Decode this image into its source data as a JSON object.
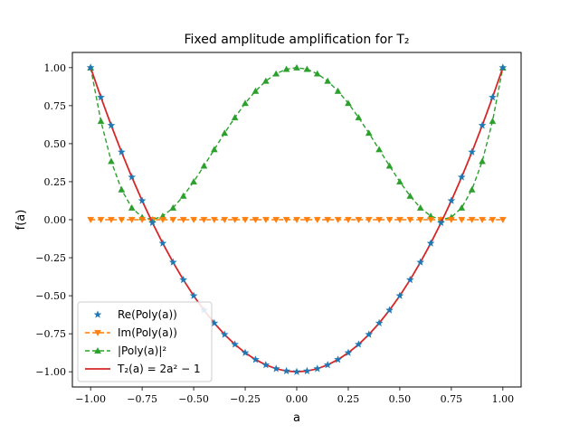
{
  "chart_data": {
    "type": "line",
    "title": "Fixed amplitude amplification for T₂",
    "xlabel": "a",
    "ylabel": "f(a)",
    "xlim": [
      -1.0,
      1.0
    ],
    "ylim": [
      -1.0,
      1.0
    ],
    "xticks": [
      -1.0,
      -0.75,
      -0.5,
      -0.25,
      0.0,
      0.25,
      0.5,
      0.75,
      1.0
    ],
    "xtick_labels": [
      "−1.00",
      "−0.75",
      "−0.50",
      "−0.25",
      "0.00",
      "0.25",
      "0.50",
      "0.75",
      "1.00"
    ],
    "yticks": [
      -1.0,
      -0.75,
      -0.5,
      -0.25,
      0.0,
      0.25,
      0.5,
      0.75,
      1.0
    ],
    "ytick_labels": [
      "−1.00",
      "−0.75",
      "−0.50",
      "−0.25",
      "0.00",
      "0.25",
      "0.50",
      "0.75",
      "1.00"
    ],
    "legend_position": "lower-left",
    "grid": false,
    "series": [
      {
        "name": "Re(Poly(a))",
        "style": "markers",
        "marker": "star",
        "color": "#1f77b4",
        "x": [
          -1.0,
          -0.95,
          -0.9,
          -0.85,
          -0.8,
          -0.75,
          -0.7,
          -0.65,
          -0.6,
          -0.55,
          -0.5,
          -0.45,
          -0.4,
          -0.35,
          -0.3,
          -0.25,
          -0.2,
          -0.15,
          -0.1,
          -0.05,
          0.0,
          0.05,
          0.1,
          0.15,
          0.2,
          0.25,
          0.3,
          0.35,
          0.4,
          0.45,
          0.5,
          0.55,
          0.6,
          0.65,
          0.7,
          0.75,
          0.8,
          0.85,
          0.9,
          0.95,
          1.0
        ],
        "y": [
          1.0,
          0.805,
          0.62,
          0.445,
          0.28,
          0.125,
          -0.02,
          -0.155,
          -0.28,
          -0.395,
          -0.5,
          -0.595,
          -0.68,
          -0.755,
          -0.82,
          -0.875,
          -0.92,
          -0.955,
          -0.98,
          -0.995,
          -1.0,
          -0.995,
          -0.98,
          -0.955,
          -0.92,
          -0.875,
          -0.82,
          -0.755,
          -0.68,
          -0.595,
          -0.5,
          -0.395,
          -0.28,
          -0.155,
          -0.02,
          0.125,
          0.28,
          0.445,
          0.62,
          0.805,
          1.0
        ]
      },
      {
        "name": "Im(Poly(a))",
        "style": "dashed-line-markers",
        "marker": "triangle-down",
        "color": "#ff7f0e",
        "x": [
          -1.0,
          -0.95,
          -0.9,
          -0.85,
          -0.8,
          -0.75,
          -0.7,
          -0.65,
          -0.6,
          -0.55,
          -0.5,
          -0.45,
          -0.4,
          -0.35,
          -0.3,
          -0.25,
          -0.2,
          -0.15,
          -0.1,
          -0.05,
          0.0,
          0.05,
          0.1,
          0.15,
          0.2,
          0.25,
          0.3,
          0.35,
          0.4,
          0.45,
          0.5,
          0.55,
          0.6,
          0.65,
          0.7,
          0.75,
          0.8,
          0.85,
          0.9,
          0.95,
          1.0
        ],
        "y": [
          0.0,
          0.0,
          0.0,
          0.0,
          0.0,
          0.0,
          0.0,
          0.0,
          0.0,
          0.0,
          0.0,
          0.0,
          0.0,
          0.0,
          0.0,
          0.0,
          0.0,
          0.0,
          0.0,
          0.0,
          0.0,
          0.0,
          0.0,
          0.0,
          0.0,
          0.0,
          0.0,
          0.0,
          0.0,
          0.0,
          0.0,
          0.0,
          0.0,
          0.0,
          0.0,
          0.0,
          0.0,
          0.0,
          0.0,
          0.0,
          0.0
        ]
      },
      {
        "name": "|Poly(a)|²",
        "style": "dashed-line-markers",
        "marker": "triangle-up",
        "color": "#2ca02c",
        "x": [
          -1.0,
          -0.95,
          -0.9,
          -0.85,
          -0.8,
          -0.75,
          -0.7,
          -0.65,
          -0.6,
          -0.55,
          -0.5,
          -0.45,
          -0.4,
          -0.35,
          -0.3,
          -0.25,
          -0.2,
          -0.15,
          -0.1,
          -0.05,
          0.0,
          0.05,
          0.1,
          0.15,
          0.2,
          0.25,
          0.3,
          0.35,
          0.4,
          0.45,
          0.5,
          0.55,
          0.6,
          0.65,
          0.7,
          0.75,
          0.8,
          0.85,
          0.9,
          0.95,
          1.0
        ],
        "y": [
          1.0,
          0.648,
          0.384,
          0.198,
          0.078,
          0.016,
          0.0,
          0.024,
          0.078,
          0.156,
          0.25,
          0.354,
          0.462,
          0.57,
          0.672,
          0.766,
          0.846,
          0.912,
          0.96,
          0.99,
          1.0,
          0.99,
          0.96,
          0.912,
          0.846,
          0.766,
          0.672,
          0.57,
          0.462,
          0.354,
          0.25,
          0.156,
          0.078,
          0.024,
          0.0,
          0.016,
          0.078,
          0.198,
          0.384,
          0.648,
          1.0
        ]
      },
      {
        "name": "T₂(a) = 2a² − 1",
        "style": "solid-line",
        "color": "#d62728",
        "x": [
          -1.0,
          -0.95,
          -0.9,
          -0.85,
          -0.8,
          -0.75,
          -0.7,
          -0.65,
          -0.6,
          -0.55,
          -0.5,
          -0.45,
          -0.4,
          -0.35,
          -0.3,
          -0.25,
          -0.2,
          -0.15,
          -0.1,
          -0.05,
          0.0,
          0.05,
          0.1,
          0.15,
          0.2,
          0.25,
          0.3,
          0.35,
          0.4,
          0.45,
          0.5,
          0.55,
          0.6,
          0.65,
          0.7,
          0.75,
          0.8,
          0.85,
          0.9,
          0.95,
          1.0
        ],
        "y": [
          1.0,
          0.805,
          0.62,
          0.445,
          0.28,
          0.125,
          -0.02,
          -0.155,
          -0.28,
          -0.395,
          -0.5,
          -0.595,
          -0.68,
          -0.755,
          -0.82,
          -0.875,
          -0.92,
          -0.955,
          -0.98,
          -0.995,
          -1.0,
          -0.995,
          -0.98,
          -0.955,
          -0.92,
          -0.875,
          -0.82,
          -0.755,
          -0.68,
          -0.595,
          -0.5,
          -0.395,
          -0.28,
          -0.155,
          -0.02,
          0.125,
          0.28,
          0.445,
          0.62,
          0.805,
          1.0
        ]
      }
    ]
  }
}
